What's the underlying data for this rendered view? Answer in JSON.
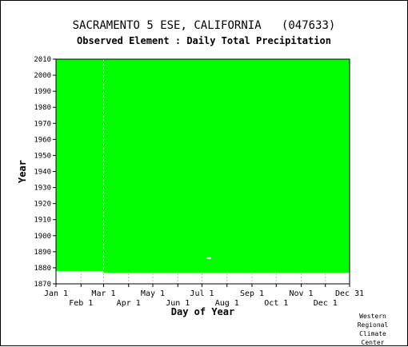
{
  "chart_data": {
    "type": "heatmap",
    "title": "SACRAMENTO 5 ESE, CALIFORNIA   (047633)",
    "subtitle": "Observed Element : Daily Total Precipitation",
    "xlabel": "Day of Year",
    "ylabel": "Year",
    "ylim": [
      1870,
      2010
    ],
    "xlim": [
      1,
      365
    ],
    "y_ticks": [
      1870,
      1880,
      1890,
      1900,
      1910,
      1920,
      1930,
      1940,
      1950,
      1960,
      1970,
      1980,
      1990,
      2000,
      2010
    ],
    "x_ticks_top_row": [
      {
        "label": "Jan 1",
        "day": 1
      },
      {
        "label": "Mar 1",
        "day": 60
      },
      {
        "label": "May 1",
        "day": 121
      },
      {
        "label": "Jul 1",
        "day": 182
      },
      {
        "label": "Sep 1",
        "day": 244
      },
      {
        "label": "Nov 1",
        "day": 305
      },
      {
        "label": "Dec 31",
        "day": 365
      }
    ],
    "x_ticks_bottom_row": [
      {
        "label": "Feb 1",
        "day": 32
      },
      {
        "label": "Apr 1",
        "day": 91
      },
      {
        "label": "Jun 1",
        "day": 152
      },
      {
        "label": "Aug 1",
        "day": 213
      },
      {
        "label": "Oct 1",
        "day": 274
      },
      {
        "label": "Dec 1",
        "day": 335
      }
    ],
    "data_coverage": [
      {
        "start_day": 60,
        "end_day": 365,
        "start_year": 1877,
        "end_year": 2010
      },
      {
        "start_day": 1,
        "end_day": 60,
        "start_year": 1878,
        "end_year": 2010
      }
    ],
    "gaps": [
      {
        "day": 60,
        "start_year": 1878,
        "end_year": 2010,
        "note": "Feb 29 leap day column"
      },
      {
        "day": 190,
        "start_year": 1885,
        "end_year": 1886
      }
    ],
    "grid": true,
    "colors": {
      "present": "#00ff00",
      "missing": "#ffffff"
    }
  },
  "credit": [
    "Western",
    "Regional",
    "Climate",
    "Center"
  ]
}
